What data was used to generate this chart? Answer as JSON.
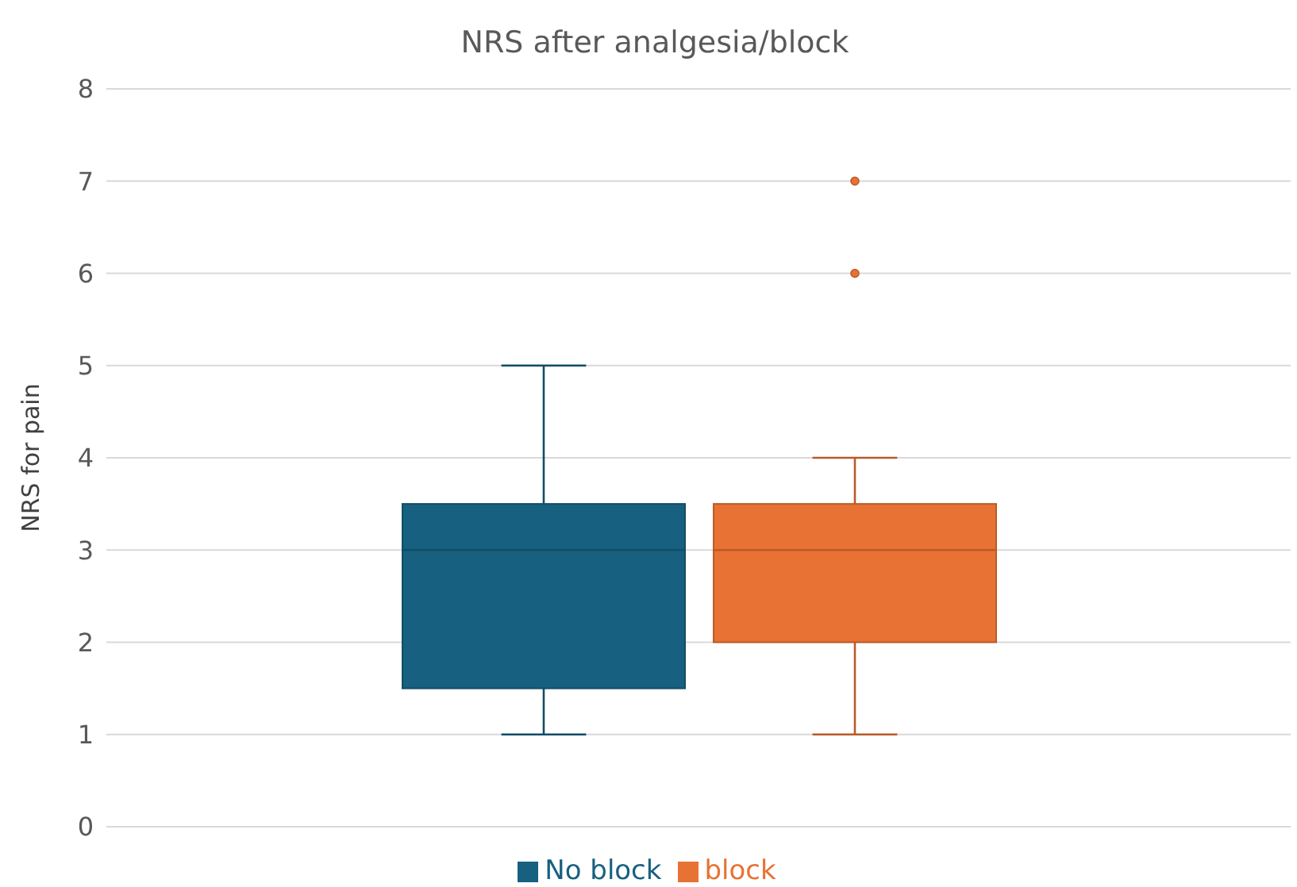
{
  "chart_data": {
    "type": "box",
    "title": "NRS after analgesia/block",
    "ylabel": "NRS for pain",
    "categories": [
      null
    ],
    "series": [
      {
        "name": "No block",
        "color": "#17607f",
        "boxes": [
          {
            "low": 1,
            "q1": 1.5,
            "median": 3,
            "q3": 3.5,
            "high": 5
          }
        ]
      },
      {
        "name": "block",
        "color": "#e87233",
        "boxes": [
          {
            "low": 1,
            "q1": 2,
            "median": 3,
            "q3": 3.5,
            "high": 4,
            "outliers": [
              6,
              7
            ]
          }
        ]
      }
    ],
    "ylim": [
      0,
      8
    ],
    "yticks": [
      0,
      1,
      2,
      3,
      4,
      5,
      6,
      7,
      8
    ],
    "grid": "y",
    "legend": "bottom"
  }
}
